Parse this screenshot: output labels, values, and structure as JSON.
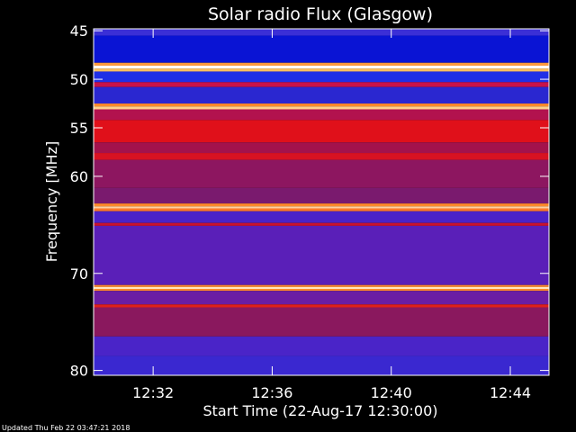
{
  "chart_data": {
    "type": "heatmap",
    "title": "Solar radio Flux (Glasgow)",
    "xlabel": "Start Time (22-Aug-17 12:30:00)",
    "ylabel": "Frequency [MHz]",
    "x_unit": "minutes after 12:30:00",
    "x_range": [
      0,
      15.3
    ],
    "x_ticks": [
      {
        "value": 2,
        "label": "12:32"
      },
      {
        "value": 6,
        "label": "12:36"
      },
      {
        "value": 10,
        "label": "12:40"
      },
      {
        "value": 14,
        "label": "12:44"
      }
    ],
    "y_unit": "MHz",
    "y_range": [
      44.8,
      80.5
    ],
    "y_ticks": [
      {
        "value": 45,
        "label": "45"
      },
      {
        "value": 50,
        "label": "50"
      },
      {
        "value": 55,
        "label": "55"
      },
      {
        "value": 60,
        "label": "60"
      },
      {
        "value": 70,
        "label": "70"
      },
      {
        "value": 80,
        "label": "80"
      }
    ],
    "frequency_bands": [
      {
        "from": 44.8,
        "to": 45.5,
        "color": "#3b2fd6"
      },
      {
        "from": 45.5,
        "to": 48.3,
        "color": "#0a14d4"
      },
      {
        "from": 48.3,
        "to": 48.6,
        "color": "#ff9a3c"
      },
      {
        "from": 48.6,
        "to": 48.9,
        "color": "#ffffff"
      },
      {
        "from": 48.9,
        "to": 49.2,
        "color": "#ffc060"
      },
      {
        "from": 49.2,
        "to": 50.3,
        "color": "#1f2fe6"
      },
      {
        "from": 50.3,
        "to": 50.8,
        "color": "#c8124a"
      },
      {
        "from": 50.8,
        "to": 52.5,
        "color": "#2a27d0"
      },
      {
        "from": 52.5,
        "to": 52.8,
        "color": "#ff8a2a"
      },
      {
        "from": 52.8,
        "to": 53.1,
        "color": "#ffd08a"
      },
      {
        "from": 53.1,
        "to": 54.2,
        "color": "#b2124e"
      },
      {
        "from": 54.2,
        "to": 56.5,
        "color": "#e0101a"
      },
      {
        "from": 56.5,
        "to": 57.6,
        "color": "#a3124c"
      },
      {
        "from": 57.6,
        "to": 58.3,
        "color": "#d81222"
      },
      {
        "from": 58.3,
        "to": 61.2,
        "color": "#8d1660"
      },
      {
        "from": 61.2,
        "to": 62.8,
        "color": "#7a1a6e"
      },
      {
        "from": 62.8,
        "to": 63.1,
        "color": "#ff8a2a"
      },
      {
        "from": 63.1,
        "to": 63.3,
        "color": "#ffd0a0"
      },
      {
        "from": 63.3,
        "to": 63.6,
        "color": "#ff7a2a"
      },
      {
        "from": 63.6,
        "to": 64.8,
        "color": "#4a22c8"
      },
      {
        "from": 64.8,
        "to": 65.1,
        "color": "#c8122e"
      },
      {
        "from": 65.1,
        "to": 71.2,
        "color": "#5a1fb8"
      },
      {
        "from": 71.2,
        "to": 71.4,
        "color": "#ff8a2a"
      },
      {
        "from": 71.4,
        "to": 71.6,
        "color": "#ffe6c0"
      },
      {
        "from": 71.6,
        "to": 71.8,
        "color": "#ff8a2a"
      },
      {
        "from": 71.8,
        "to": 73.2,
        "color": "#6a1da4"
      },
      {
        "from": 73.2,
        "to": 73.5,
        "color": "#e0201a"
      },
      {
        "from": 73.5,
        "to": 76.5,
        "color": "#8a185e"
      },
      {
        "from": 76.5,
        "to": 78.5,
        "color": "#4a24c8"
      },
      {
        "from": 78.5,
        "to": 80.5,
        "color": "#3a28d0"
      }
    ]
  },
  "footer": {
    "updated_text": "Updated Thu Feb 22 03:47:21 2018"
  },
  "colors": {
    "background": "#000000",
    "axis": "#ffffff",
    "text": "#ffffff"
  }
}
